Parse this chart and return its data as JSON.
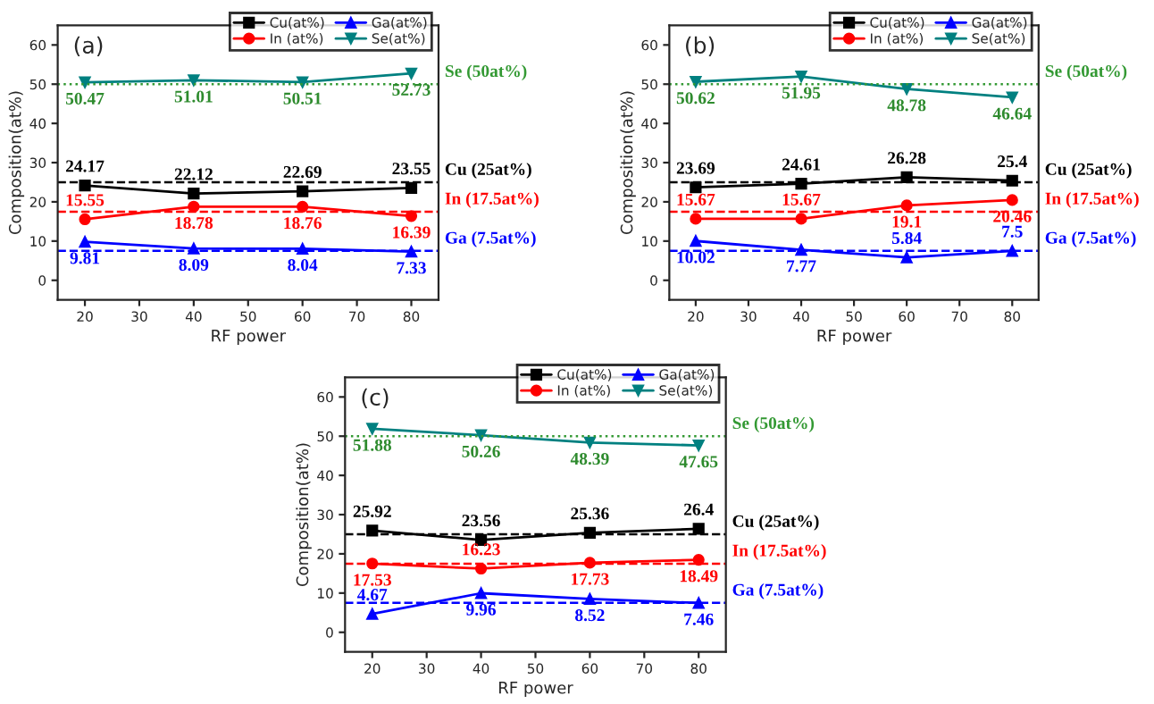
{
  "chart_data": [
    {
      "type": "line",
      "annotations": [
        "(a)"
      ],
      "xlabel": "RF power",
      "ylabel": "Composition(at%)",
      "x": [
        20,
        40,
        60,
        80
      ],
      "series": [
        {
          "name": "Cu(at%)",
          "color": "#000000",
          "marker": "square",
          "values": [
            24.17,
            22.12,
            22.69,
            23.55
          ]
        },
        {
          "name": "In (at%)",
          "color": "#ff0000",
          "marker": "circle",
          "values": [
            15.55,
            18.78,
            18.76,
            16.39
          ]
        },
        {
          "name": "Ga(at%)",
          "color": "#0000ff",
          "marker": "triangle",
          "values": [
            9.81,
            8.09,
            8.04,
            7.33
          ]
        },
        {
          "name": "Se(at%)",
          "color": "#008080",
          "marker": "triangle_down",
          "values": [
            50.47,
            51.01,
            50.51,
            52.73
          ]
        }
      ],
      "ref_lines": [
        {
          "axis": "y",
          "value": 50,
          "label": "Se (50at%)",
          "color": "#339933",
          "line_style": "dotted"
        },
        {
          "axis": "y",
          "value": 25,
          "label": "Cu (25at%)",
          "color": "#000000",
          "line_style": "dashed"
        },
        {
          "axis": "y",
          "value": 17.5,
          "label": "In (17.5at%)",
          "color": "#ff0000",
          "line_style": "dashed"
        },
        {
          "axis": "y",
          "value": 7.5,
          "label": "Ga (7.5at%)",
          "color": "#0000ff",
          "line_style": "dashed"
        }
      ],
      "xlim": [
        15,
        85
      ],
      "ylim": [
        -5,
        65
      ],
      "xticks": [
        20,
        30,
        40,
        50,
        60,
        70,
        80
      ],
      "yticks": [
        0,
        10,
        20,
        30,
        40,
        50,
        60
      ],
      "data_labels": true,
      "legend": "top right",
      "line_style": "solid"
    },
    {
      "type": "line",
      "annotations": [
        "(b)"
      ],
      "xlabel": "RF power",
      "ylabel": "Composition(at%)",
      "x": [
        20,
        40,
        60,
        80
      ],
      "series": [
        {
          "name": "Cu(at%)",
          "color": "#000000",
          "marker": "square",
          "values": [
            23.69,
            24.61,
            26.28,
            25.4
          ]
        },
        {
          "name": "In (at%)",
          "color": "#ff0000",
          "marker": "circle",
          "values": [
            15.67,
            15.67,
            19.1,
            20.46
          ]
        },
        {
          "name": "Ga(at%)",
          "color": "#0000ff",
          "marker": "triangle",
          "values": [
            10.02,
            7.77,
            5.84,
            7.5
          ]
        },
        {
          "name": "Se(at%)",
          "color": "#008080",
          "marker": "triangle_down",
          "values": [
            50.62,
            51.95,
            48.78,
            46.64
          ]
        }
      ],
      "ref_lines": [
        {
          "axis": "y",
          "value": 50,
          "label": "Se (50at%)",
          "color": "#339933",
          "line_style": "dotted"
        },
        {
          "axis": "y",
          "value": 25,
          "label": "Cu (25at%)",
          "color": "#000000",
          "line_style": "dashed"
        },
        {
          "axis": "y",
          "value": 17.5,
          "label": "In (17.5at%)",
          "color": "#ff0000",
          "line_style": "dashed"
        },
        {
          "axis": "y",
          "value": 7.5,
          "label": "Ga (7.5at%)",
          "color": "#0000ff",
          "line_style": "dashed"
        }
      ],
      "xlim": [
        15,
        85
      ],
      "ylim": [
        -5,
        65
      ],
      "xticks": [
        20,
        30,
        40,
        50,
        60,
        70,
        80
      ],
      "yticks": [
        0,
        10,
        20,
        30,
        40,
        50,
        60
      ],
      "data_labels": true,
      "legend": "top right",
      "line_style": "solid"
    },
    {
      "type": "line",
      "annotations": [
        "(c)"
      ],
      "xlabel": "RF power",
      "ylabel": "Composition(at%)",
      "x": [
        20,
        40,
        60,
        80
      ],
      "series": [
        {
          "name": "Cu(at%)",
          "color": "#000000",
          "marker": "square",
          "values": [
            25.92,
            23.56,
            25.36,
            26.4
          ]
        },
        {
          "name": "In (at%)",
          "color": "#ff0000",
          "marker": "circle",
          "values": [
            17.53,
            16.23,
            17.73,
            18.49
          ]
        },
        {
          "name": "Ga(at%)",
          "color": "#0000ff",
          "marker": "triangle",
          "values": [
            4.67,
            9.96,
            8.52,
            7.46
          ]
        },
        {
          "name": "Se(at%)",
          "color": "#008080",
          "marker": "triangle_down",
          "values": [
            51.88,
            50.26,
            48.39,
            47.65
          ]
        }
      ],
      "ref_lines": [
        {
          "axis": "y",
          "value": 50,
          "label": "Se (50at%)",
          "color": "#339933",
          "line_style": "dotted"
        },
        {
          "axis": "y",
          "value": 25,
          "label": "Cu (25at%)",
          "color": "#000000",
          "line_style": "dashed"
        },
        {
          "axis": "y",
          "value": 17.5,
          "label": "In (17.5at%)",
          "color": "#ff0000",
          "line_style": "dashed"
        },
        {
          "axis": "y",
          "value": 7.5,
          "label": "Ga (7.5at%)",
          "color": "#0000ff",
          "line_style": "dashed"
        }
      ],
      "xlim": [
        15,
        85
      ],
      "ylim": [
        -5,
        65
      ],
      "xticks": [
        20,
        30,
        40,
        50,
        60,
        70,
        80
      ],
      "yticks": [
        0,
        10,
        20,
        30,
        40,
        50,
        60
      ],
      "data_labels": true,
      "legend": "top right",
      "line_style": "solid"
    }
  ]
}
